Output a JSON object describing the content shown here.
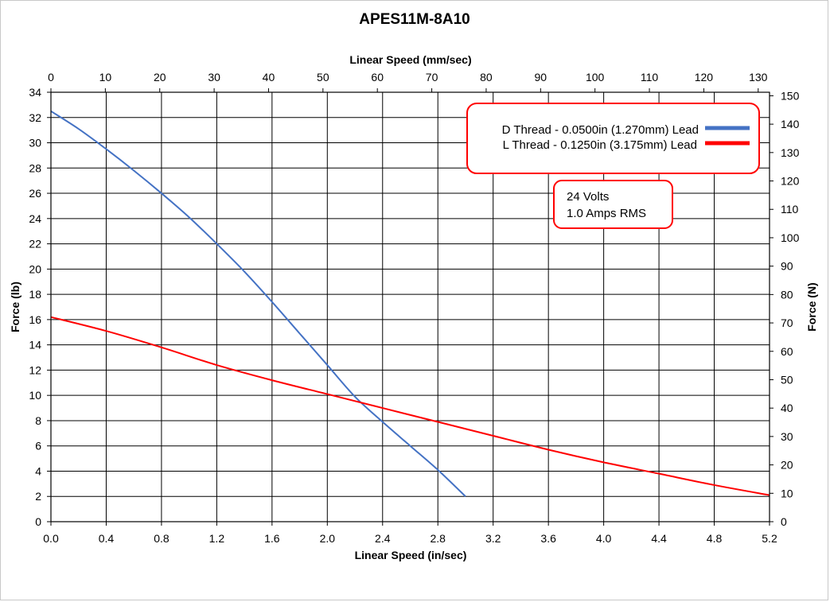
{
  "chart_data": {
    "type": "line",
    "title": "APES11M-8A10",
    "xlabel": "Linear Speed (in/sec)",
    "x2label": "Linear Speed (mm/sec)",
    "ylabel": "Force (lb)",
    "y2label": "Force (N)",
    "xlim": [
      0,
      5.2
    ],
    "x2lim": [
      0,
      132.08
    ],
    "ylim": [
      0,
      34
    ],
    "y2lim": [
      0,
      151.24
    ],
    "x_ticks": [
      "0.0",
      "0.4",
      "0.8",
      "1.2",
      "1.6",
      "2.0",
      "2.4",
      "2.8",
      "3.2",
      "3.6",
      "4.0",
      "4.4",
      "4.8",
      "5.2"
    ],
    "x2_ticks": [
      "0",
      "10",
      "20",
      "30",
      "40",
      "50",
      "60",
      "70",
      "80",
      "90",
      "100",
      "110",
      "120",
      "130"
    ],
    "y_ticks": [
      "0",
      "2",
      "4",
      "6",
      "8",
      "10",
      "12",
      "14",
      "16",
      "18",
      "20",
      "22",
      "24",
      "26",
      "28",
      "30",
      "32",
      "34"
    ],
    "y2_ticks": [
      "0",
      "10",
      "20",
      "30",
      "40",
      "50",
      "60",
      "70",
      "80",
      "90",
      "100",
      "110",
      "120",
      "130",
      "140",
      "150"
    ],
    "grid": true,
    "legend_position": "top-right",
    "series": [
      {
        "name": "D Thread - 0.0500in (1.270mm) Lead",
        "color": "#4472C4",
        "x": [
          0,
          0.2,
          0.4,
          0.6,
          0.8,
          1.0,
          1.2,
          1.4,
          1.6,
          1.8,
          2.0,
          2.2,
          2.4,
          2.6,
          2.8,
          3.0
        ],
        "y": [
          32.5,
          31.1,
          29.5,
          27.8,
          26.0,
          24.1,
          22.0,
          19.8,
          17.4,
          14.9,
          12.4,
          9.9,
          7.9,
          6.0,
          4.1,
          2.0
        ]
      },
      {
        "name": "L Thread - 0.1250in (3.175mm) Lead",
        "color": "#FF0000",
        "x": [
          0,
          0.4,
          0.8,
          1.2,
          1.6,
          2.0,
          2.4,
          2.8,
          3.2,
          3.6,
          4.0,
          4.4,
          4.8,
          5.2
        ],
        "y": [
          16.2,
          15.1,
          13.8,
          12.4,
          11.2,
          10.1,
          9.0,
          7.9,
          6.8,
          5.7,
          4.7,
          3.8,
          2.9,
          2.1
        ]
      }
    ],
    "annotation": [
      "24 Volts",
      "1.0 Amps RMS"
    ]
  }
}
